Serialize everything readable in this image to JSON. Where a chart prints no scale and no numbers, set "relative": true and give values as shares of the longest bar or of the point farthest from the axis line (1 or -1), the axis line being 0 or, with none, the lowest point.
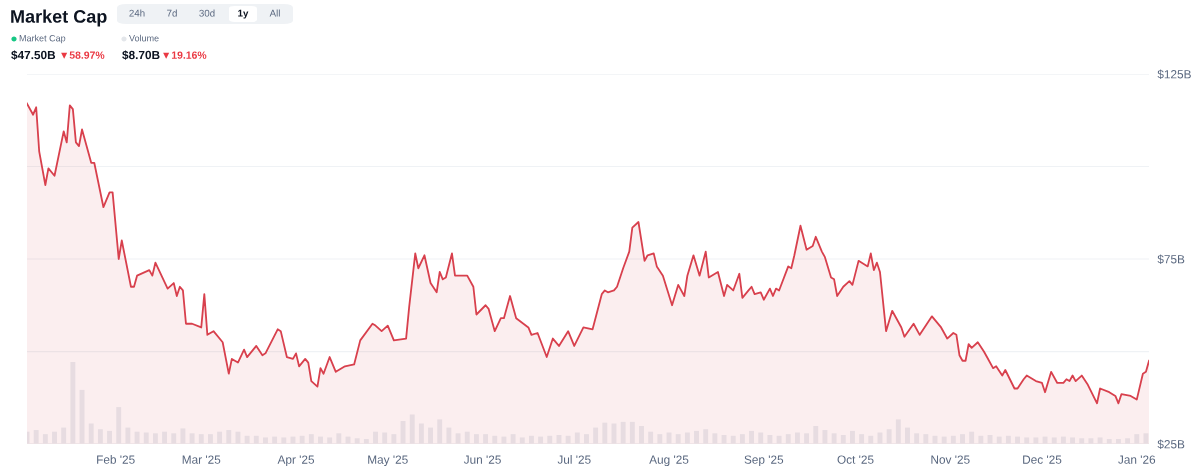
{
  "chart_data": [
    {
      "type": "area",
      "title": "Market Cap",
      "color": "#d8404d",
      "grid": "y",
      "legend": false,
      "marker": "none",
      "annotations": [
        "24h",
        "7d",
        "30d",
        "1y",
        "All",
        "Market Cap",
        "$47.50B",
        "▼58.97%",
        "Volume",
        "$8.70B",
        "▼19.16%"
      ],
      "xlim": [
        "2025-01-03",
        "2026-01-05"
      ],
      "xticks": [
        {
          "value": "2025-02-01",
          "label": "Feb '25"
        },
        {
          "value": "2025-03-01",
          "label": "Mar '25"
        },
        {
          "value": "2025-04-01",
          "label": "Apr '25"
        },
        {
          "value": "2025-05-01",
          "label": "May '25"
        },
        {
          "value": "2025-06-01",
          "label": "Jun '25"
        },
        {
          "value": "2025-07-01",
          "label": "Jul '25"
        },
        {
          "value": "2025-08-01",
          "label": "Aug '25"
        },
        {
          "value": "2025-09-01",
          "label": "Sep '25"
        },
        {
          "value": "2025-10-01",
          "label": "Oct '25"
        },
        {
          "value": "2025-11-01",
          "label": "Nov '25"
        },
        {
          "value": "2025-12-01",
          "label": "Dec '25"
        },
        {
          "value": "2026-01-01",
          "label": "Jan '26"
        }
      ],
      "ylim": [
        25,
        125
      ],
      "yticks": [
        {
          "value": 25,
          "label": "$25B"
        },
        {
          "value": 50,
          "label": null
        },
        {
          "value": 75,
          "label": "$75B"
        },
        {
          "value": 100,
          "label": null
        },
        {
          "value": 125,
          "label": "$125B"
        }
      ],
      "x": [
        "2025-01-03",
        "2025-01-05",
        "2025-01-06",
        "2025-01-07",
        "2025-01-09",
        "2025-01-10",
        "2025-01-12",
        "2025-01-15",
        "2025-01-16",
        "2025-01-17",
        "2025-01-18",
        "2025-01-19",
        "2025-01-20",
        "2025-01-21",
        "2025-01-24",
        "2025-01-25",
        "2025-01-28",
        "2025-01-30",
        "2025-01-31",
        "2025-02-02",
        "2025-02-03",
        "2025-02-06",
        "2025-02-07",
        "2025-02-08",
        "2025-02-12",
        "2025-02-13",
        "2025-02-14",
        "2025-02-18",
        "2025-02-20",
        "2025-02-21",
        "2025-02-22",
        "2025-02-23",
        "2025-02-24",
        "2025-02-26",
        "2025-03-01",
        "2025-03-02",
        "2025-03-03",
        "2025-03-05",
        "2025-03-08",
        "2025-03-10",
        "2025-03-11",
        "2025-03-13",
        "2025-03-15",
        "2025-03-16",
        "2025-03-19",
        "2025-03-21",
        "2025-03-22",
        "2025-03-26",
        "2025-03-27",
        "2025-03-29",
        "2025-03-31",
        "2025-04-01",
        "2025-04-02",
        "2025-04-04",
        "2025-04-05",
        "2025-04-06",
        "2025-04-08",
        "2025-04-09",
        "2025-04-10",
        "2025-04-12",
        "2025-04-14",
        "2025-04-17",
        "2025-04-20",
        "2025-04-22",
        "2025-04-26",
        "2025-04-27",
        "2025-04-29",
        "2025-05-01",
        "2025-05-03",
        "2025-05-07",
        "2025-05-08",
        "2025-05-10",
        "2025-05-11",
        "2025-05-13",
        "2025-05-15",
        "2025-05-17",
        "2025-05-18",
        "2025-05-19",
        "2025-05-20",
        "2025-05-22",
        "2025-05-23",
        "2025-05-27",
        "2025-05-29",
        "2025-05-30",
        "2025-06-02",
        "2025-06-03",
        "2025-06-05",
        "2025-06-07",
        "2025-06-08",
        "2025-06-10",
        "2025-06-12",
        "2025-06-16",
        "2025-06-17",
        "2025-06-19",
        "2025-06-22",
        "2025-06-24",
        "2025-06-26",
        "2025-06-29",
        "2025-07-01",
        "2025-07-04",
        "2025-07-07",
        "2025-07-10",
        "2025-07-11",
        "2025-07-12",
        "2025-07-14",
        "2025-07-15",
        "2025-07-17",
        "2025-07-19",
        "2025-07-20",
        "2025-07-22",
        "2025-07-24",
        "2025-07-25",
        "2025-07-27",
        "2025-07-28",
        "2025-07-30",
        "2025-08-02",
        "2025-08-04",
        "2025-08-06",
        "2025-08-07",
        "2025-08-09",
        "2025-08-11",
        "2025-08-13",
        "2025-08-14",
        "2025-08-17",
        "2025-08-19",
        "2025-08-20",
        "2025-08-22",
        "2025-08-24",
        "2025-08-25",
        "2025-08-27",
        "2025-08-28",
        "2025-08-29",
        "2025-08-31",
        "2025-09-01",
        "2025-09-03",
        "2025-09-04",
        "2025-09-05",
        "2025-09-06",
        "2025-09-09",
        "2025-09-10",
        "2025-09-11",
        "2025-09-13",
        "2025-09-15",
        "2025-09-17",
        "2025-09-18",
        "2025-09-20",
        "2025-09-21",
        "2025-09-23",
        "2025-09-24",
        "2025-09-25",
        "2025-09-27",
        "2025-09-29",
        "2025-09-30",
        "2025-10-02",
        "2025-10-05",
        "2025-10-06",
        "2025-10-07",
        "2025-10-08",
        "2025-10-09",
        "2025-10-11",
        "2025-10-13",
        "2025-10-16",
        "2025-10-17",
        "2025-10-20",
        "2025-10-22",
        "2025-10-24",
        "2025-10-26",
        "2025-10-29",
        "2025-10-31",
        "2025-11-02",
        "2025-11-03",
        "2025-11-04",
        "2025-11-05",
        "2025-11-06",
        "2025-11-07",
        "2025-11-08",
        "2025-11-10",
        "2025-11-12",
        "2025-11-13",
        "2025-11-15",
        "2025-11-16",
        "2025-11-18",
        "2025-11-19",
        "2025-11-22",
        "2025-11-23",
        "2025-11-25",
        "2025-11-26",
        "2025-11-29",
        "2025-12-01",
        "2025-12-02",
        "2025-12-04",
        "2025-12-06",
        "2025-12-08",
        "2025-12-09",
        "2025-12-10",
        "2025-12-11",
        "2025-12-12",
        "2025-12-14",
        "2025-12-16",
        "2025-12-19",
        "2025-12-20",
        "2025-12-23",
        "2025-12-25",
        "2025-12-26",
        "2025-12-27",
        "2025-12-30",
        "2026-01-01",
        "2026-01-03",
        "2026-01-04",
        "2026-01-05"
      ],
      "values": [
        117,
        114,
        116,
        104,
        95,
        99.5,
        97.5,
        109.5,
        106.5,
        116.5,
        115.5,
        106.5,
        105.5,
        110,
        101,
        101,
        89,
        93,
        93,
        75,
        80,
        67.5,
        67.5,
        70.5,
        72,
        70.5,
        74,
        67,
        68.5,
        65,
        67.5,
        66.5,
        57.5,
        57.5,
        56.5,
        65.5,
        54.5,
        55.5,
        52.5,
        44,
        48,
        47,
        50.5,
        48.5,
        51.5,
        49,
        49.5,
        56,
        55.5,
        48.5,
        48,
        49.5,
        46,
        48,
        47,
        42,
        40.5,
        45.5,
        44,
        48.5,
        44.5,
        46,
        46.5,
        53,
        57.5,
        57,
        55.5,
        57,
        53,
        53.5,
        62,
        76.5,
        72.5,
        76,
        68.5,
        66,
        71.5,
        69.5,
        70,
        76.5,
        70.5,
        70.5,
        67.5,
        60,
        62.5,
        61.5,
        55.5,
        59,
        59,
        65,
        59,
        56.5,
        54.5,
        55,
        48.5,
        53.5,
        51.5,
        55.5,
        51.5,
        56.5,
        56,
        65.5,
        66.5,
        66,
        66.5,
        67.5,
        72.5,
        77,
        83.5,
        85,
        74.5,
        76,
        76.5,
        73,
        70.5,
        62.5,
        68,
        65,
        70.5,
        76,
        70.5,
        77,
        70,
        71.5,
        65,
        68,
        66.5,
        71,
        64.5,
        66.5,
        67.5,
        65.5,
        66,
        64,
        67,
        65,
        67,
        66.5,
        73,
        72.5,
        76,
        84,
        77.5,
        78.5,
        81,
        77,
        75.5,
        70,
        69.5,
        65,
        67.5,
        69,
        68,
        74.5,
        73,
        76.5,
        72,
        74,
        71.5,
        55.5,
        61,
        56.5,
        54,
        57.5,
        54.5,
        57,
        59.5,
        56.5,
        53.5,
        55,
        54.5,
        49,
        47.5,
        47.5,
        52,
        51,
        52.5,
        50,
        48.5,
        45.5,
        46,
        43.5,
        45,
        40,
        40,
        42.5,
        43.5,
        42,
        41.5,
        39,
        44.5,
        41.5,
        41.5,
        42.5,
        42,
        43.5,
        42,
        43.5,
        41,
        36,
        40,
        39,
        38,
        36,
        38.5,
        38,
        37,
        44,
        44.5,
        47.5
      ]
    },
    {
      "type": "bar",
      "relative": true,
      "color": "#e9ecf0",
      "tick_labels": false,
      "xlim": [
        "2025-01-03",
        "2026-01-05"
      ],
      "x": [
        "2025-01-03",
        "2025-01-06",
        "2025-01-09",
        "2025-01-12",
        "2025-01-15",
        "2025-01-18",
        "2025-01-21",
        "2025-01-24",
        "2025-01-27",
        "2025-01-30",
        "2025-02-02",
        "2025-02-05",
        "2025-02-08",
        "2025-02-11",
        "2025-02-14",
        "2025-02-17",
        "2025-02-20",
        "2025-02-23",
        "2025-02-26",
        "2025-03-01",
        "2025-03-04",
        "2025-03-07",
        "2025-03-10",
        "2025-03-13",
        "2025-03-16",
        "2025-03-19",
        "2025-03-22",
        "2025-03-25",
        "2025-03-28",
        "2025-03-31",
        "2025-04-03",
        "2025-04-06",
        "2025-04-09",
        "2025-04-12",
        "2025-04-15",
        "2025-04-18",
        "2025-04-21",
        "2025-04-24",
        "2025-04-27",
        "2025-04-30",
        "2025-05-03",
        "2025-05-06",
        "2025-05-09",
        "2025-05-12",
        "2025-05-15",
        "2025-05-18",
        "2025-05-21",
        "2025-05-24",
        "2025-05-27",
        "2025-05-30",
        "2025-06-02",
        "2025-06-05",
        "2025-06-08",
        "2025-06-11",
        "2025-06-14",
        "2025-06-17",
        "2025-06-20",
        "2025-06-23",
        "2025-06-26",
        "2025-06-29",
        "2025-07-02",
        "2025-07-05",
        "2025-07-08",
        "2025-07-11",
        "2025-07-14",
        "2025-07-17",
        "2025-07-20",
        "2025-07-23",
        "2025-07-26",
        "2025-07-29",
        "2025-08-01",
        "2025-08-04",
        "2025-08-07",
        "2025-08-10",
        "2025-08-13",
        "2025-08-16",
        "2025-08-19",
        "2025-08-22",
        "2025-08-25",
        "2025-08-28",
        "2025-08-31",
        "2025-09-03",
        "2025-09-06",
        "2025-09-09",
        "2025-09-12",
        "2025-09-15",
        "2025-09-18",
        "2025-09-21",
        "2025-09-24",
        "2025-09-27",
        "2025-09-30",
        "2025-10-03",
        "2025-10-06",
        "2025-10-09",
        "2025-10-12",
        "2025-10-15",
        "2025-10-18",
        "2025-10-21",
        "2025-10-24",
        "2025-10-27",
        "2025-10-30",
        "2025-11-02",
        "2025-11-05",
        "2025-11-08",
        "2025-11-11",
        "2025-11-14",
        "2025-11-17",
        "2025-11-20",
        "2025-11-23",
        "2025-11-26",
        "2025-11-29",
        "2025-12-02",
        "2025-12-05",
        "2025-12-08",
        "2025-12-11",
        "2025-12-14",
        "2025-12-17",
        "2025-12-20",
        "2025-12-23",
        "2025-12-26",
        "2025-12-29",
        "2026-01-01",
        "2026-01-04"
      ],
      "values": [
        0.15,
        0.17,
        0.12,
        0.15,
        0.2,
        1.0,
        0.66,
        0.25,
        0.18,
        0.16,
        0.45,
        0.2,
        0.15,
        0.14,
        0.13,
        0.15,
        0.13,
        0.19,
        0.13,
        0.12,
        0.12,
        0.15,
        0.17,
        0.15,
        0.1,
        0.1,
        0.08,
        0.09,
        0.08,
        0.09,
        0.1,
        0.12,
        0.09,
        0.08,
        0.13,
        0.09,
        0.07,
        0.06,
        0.15,
        0.14,
        0.12,
        0.28,
        0.36,
        0.25,
        0.2,
        0.3,
        0.2,
        0.13,
        0.15,
        0.12,
        0.12,
        0.1,
        0.09,
        0.12,
        0.08,
        0.1,
        0.09,
        0.1,
        0.11,
        0.1,
        0.14,
        0.12,
        0.2,
        0.26,
        0.25,
        0.27,
        0.27,
        0.22,
        0.15,
        0.12,
        0.14,
        0.12,
        0.14,
        0.16,
        0.18,
        0.13,
        0.11,
        0.1,
        0.12,
        0.16,
        0.14,
        0.11,
        0.1,
        0.12,
        0.14,
        0.13,
        0.22,
        0.17,
        0.13,
        0.11,
        0.16,
        0.12,
        0.1,
        0.14,
        0.18,
        0.3,
        0.2,
        0.13,
        0.12,
        0.1,
        0.09,
        0.1,
        0.12,
        0.15,
        0.1,
        0.11,
        0.09,
        0.1,
        0.09,
        0.08,
        0.08,
        0.09,
        0.08,
        0.09,
        0.08,
        0.07,
        0.07,
        0.08,
        0.06,
        0.06,
        0.07,
        0.12,
        0.13
      ]
    }
  ]
}
